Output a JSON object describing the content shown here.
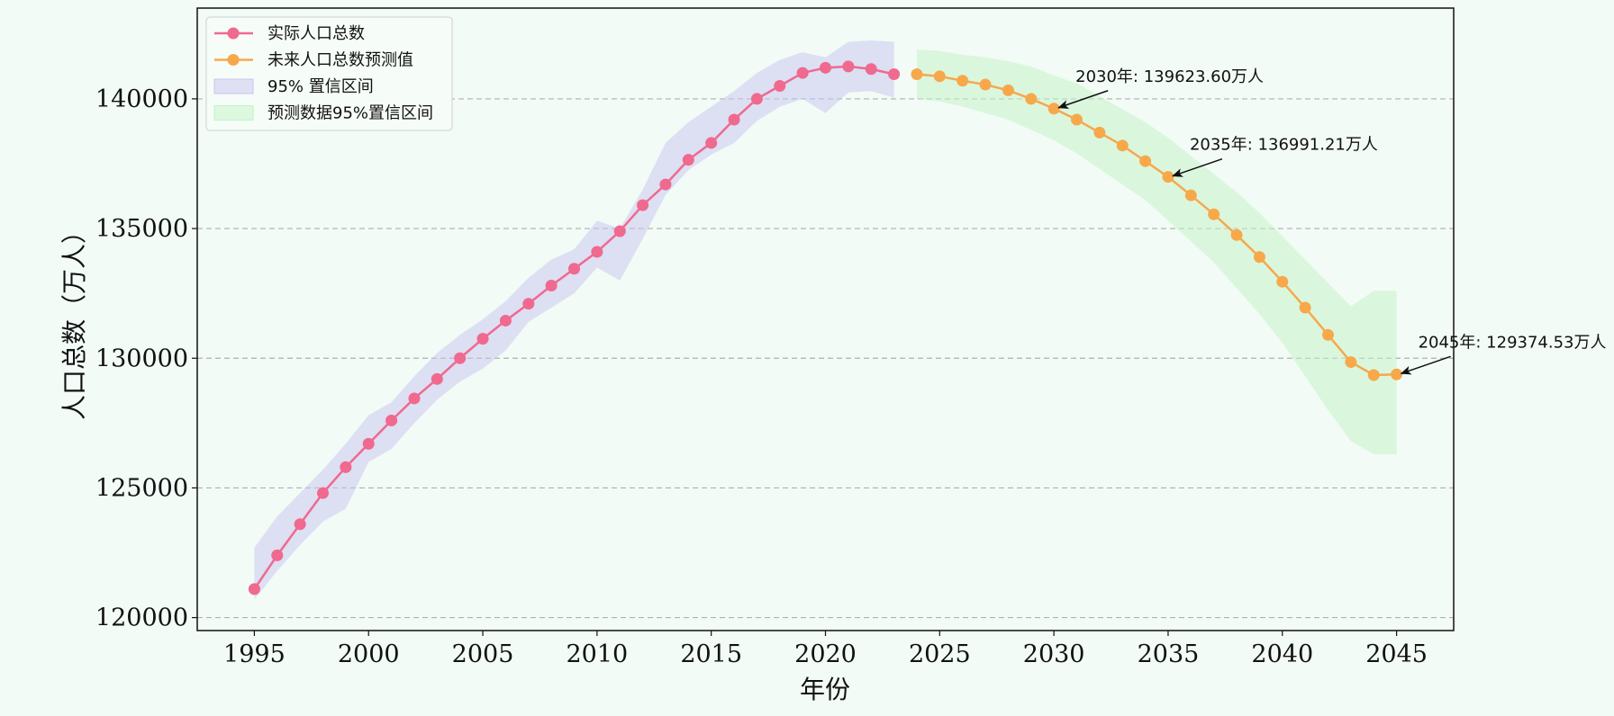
{
  "chart_data": {
    "type": "line",
    "title": "",
    "xlabel": "年份",
    "ylabel": "人口总数（万人）",
    "xlim": [
      1992.5,
      2047.5
    ],
    "ylim": [
      119500,
      143500
    ],
    "xticks": [
      1995,
      2000,
      2005,
      2010,
      2015,
      2020,
      2025,
      2030,
      2035,
      2040,
      2045
    ],
    "yticks": [
      120000,
      125000,
      130000,
      135000,
      140000
    ],
    "grid": "horizontal dashed",
    "legend_position": "top-left",
    "series": [
      {
        "name": "实际人口总数",
        "color": "#f0698e",
        "x": [
          1995,
          1996,
          1997,
          1998,
          1999,
          2000,
          2001,
          2002,
          2003,
          2004,
          2005,
          2006,
          2007,
          2008,
          2009,
          2010,
          2011,
          2012,
          2013,
          2014,
          2015,
          2016,
          2017,
          2018,
          2019,
          2020,
          2021,
          2022,
          2023
        ],
        "values": [
          121100,
          122400,
          123600,
          124800,
          125800,
          126700,
          127600,
          128450,
          129200,
          130000,
          130750,
          131450,
          132100,
          132800,
          133450,
          134100,
          134900,
          135900,
          136700,
          137650,
          138300,
          139200,
          140000,
          140500,
          141000,
          141200,
          141250,
          141150,
          140950
        ]
      },
      {
        "name": "未来人口总数预测值",
        "color": "#f7a84b",
        "x": [
          2024,
          2025,
          2026,
          2027,
          2028,
          2029,
          2030,
          2031,
          2032,
          2033,
          2034,
          2035,
          2036,
          2037,
          2038,
          2039,
          2040,
          2041,
          2042,
          2043,
          2044,
          2045
        ],
        "values": [
          140950,
          140870,
          140700,
          140550,
          140330,
          140000,
          139623.6,
          139200,
          138700,
          138200,
          137600,
          136991.21,
          136280,
          135550,
          134750,
          133900,
          132950,
          131950,
          130900,
          129850,
          129350,
          129374.53
        ]
      }
    ],
    "bands": [
      {
        "name": "95% 置信区间",
        "color": "#c8c4f0",
        "x": [
          1995,
          1996,
          1997,
          1998,
          1999,
          2000,
          2001,
          2002,
          2003,
          2004,
          2005,
          2006,
          2007,
          2008,
          2009,
          2010,
          2011,
          2012,
          2013,
          2014,
          2015,
          2016,
          2017,
          2018,
          2019,
          2020,
          2021,
          2022,
          2023
        ],
        "lower": [
          120700,
          121800,
          122800,
          123700,
          124200,
          126000,
          126500,
          127500,
          128400,
          129100,
          129600,
          130300,
          131400,
          131950,
          132500,
          133500,
          133000,
          134600,
          136300,
          137250,
          137850,
          138300,
          139150,
          139700,
          140000,
          139450,
          140250,
          140300,
          140050
        ],
        "upper": [
          122700,
          123900,
          124800,
          125700,
          126700,
          127800,
          128300,
          129300,
          130200,
          130900,
          131500,
          132200,
          133100,
          133800,
          134200,
          135300,
          135000,
          136500,
          138300,
          139100,
          139700,
          140300,
          141000,
          141500,
          141800,
          141600,
          142200,
          142250,
          142200
        ]
      },
      {
        "name": "预测数据95%置信区间",
        "color": "#c2f3c5",
        "x": [
          2024,
          2025,
          2026,
          2027,
          2028,
          2029,
          2030,
          2031,
          2032,
          2033,
          2034,
          2035,
          2036,
          2037,
          2038,
          2039,
          2040,
          2041,
          2042,
          2043,
          2044,
          2045
        ],
        "lower": [
          140000,
          139900,
          139700,
          139450,
          139200,
          138800,
          138400,
          137900,
          137300,
          136700,
          136100,
          135300,
          134500,
          133700,
          132700,
          131700,
          130600,
          129300,
          128000,
          126800,
          126300,
          126300
        ],
        "upper": [
          141900,
          141850,
          141700,
          141600,
          141450,
          141250,
          140900,
          140600,
          140100,
          139600,
          139100,
          138500,
          137800,
          137100,
          136400,
          135600,
          134700,
          133800,
          132900,
          132000,
          132600,
          132600
        ]
      }
    ],
    "annotations": [
      {
        "text": "2030年: 139623.60万人",
        "x": 2030,
        "y": 139623.6
      },
      {
        "text": "2035年: 136991.21万人",
        "x": 2035,
        "y": 136991.21
      },
      {
        "text": "2045年: 129374.53万人",
        "x": 2045,
        "y": 129374.53
      }
    ],
    "legend": [
      {
        "label": "实际人口总数",
        "kind": "line",
        "color": "#f0698e"
      },
      {
        "label": "未来人口总数预测值",
        "kind": "line",
        "color": "#f7a84b"
      },
      {
        "label": "95% 置信区间",
        "kind": "patch",
        "color": "#c8c4f0"
      },
      {
        "label": "预测数据95%置信区间",
        "kind": "patch",
        "color": "#c2f3c5"
      }
    ]
  }
}
